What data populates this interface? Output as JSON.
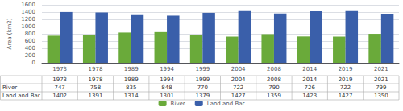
{
  "chart_data": {
    "type": "bar",
    "ylabel": "Area (km2)",
    "categories": [
      "1973",
      "1978",
      "1989",
      "1994",
      "1999",
      "2004",
      "2008",
      "2014",
      "2019",
      "2021"
    ],
    "series": [
      {
        "name": "River",
        "color": "#6aaa3a",
        "values": [
          747,
          758,
          835,
          848,
          770,
          722,
          790,
          726,
          722,
          799
        ]
      },
      {
        "name": "Land and Bar",
        "color": "#3a5faa",
        "values": [
          1402,
          1391,
          1314,
          1301,
          1379,
          1427,
          1359,
          1423,
          1427,
          1350
        ]
      }
    ],
    "ylim": [
      0,
      1600
    ],
    "yticks": [
      0,
      200,
      400,
      600,
      800,
      1000,
      1200,
      1400,
      1600
    ],
    "grid": true,
    "legend": "bottom"
  }
}
